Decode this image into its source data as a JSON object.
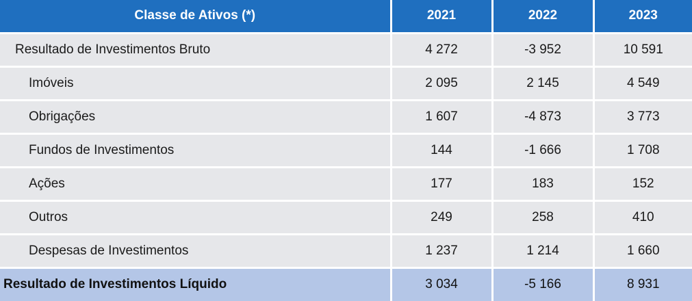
{
  "table": {
    "header": {
      "class_label": "Classe de Ativos (*)",
      "years": [
        "2021",
        "2022",
        "2023"
      ]
    },
    "rows": [
      {
        "label": "Resultado de Investimentos Bruto",
        "level": 0,
        "values": [
          "4 272",
          "-3 952",
          "10 591"
        ]
      },
      {
        "label": "Imóveis",
        "level": 1,
        "values": [
          "2 095",
          "2 145",
          "4 549"
        ]
      },
      {
        "label": "Obrigações",
        "level": 1,
        "values": [
          "1 607",
          "-4 873",
          "3 773"
        ]
      },
      {
        "label": "Fundos de Investimentos",
        "level": 1,
        "values": [
          "144",
          "-1 666",
          "1 708"
        ]
      },
      {
        "label": "Ações",
        "level": 1,
        "values": [
          "177",
          "183",
          "152"
        ]
      },
      {
        "label": "Outros",
        "level": 1,
        "values": [
          "249",
          "258",
          "410"
        ]
      },
      {
        "label": "Despesas de Investimentos",
        "level": 1,
        "values": [
          "1 237",
          "1 214",
          "1 660"
        ]
      }
    ],
    "total": {
      "label": "Resultado de Investimentos Líquido",
      "values": [
        "3 034",
        "-5 166",
        "8 931"
      ]
    }
  },
  "colors": {
    "header_bg": "#1f6fbf",
    "row_bg": "#e6e7ea",
    "total_bg": "#b4c6e7"
  }
}
